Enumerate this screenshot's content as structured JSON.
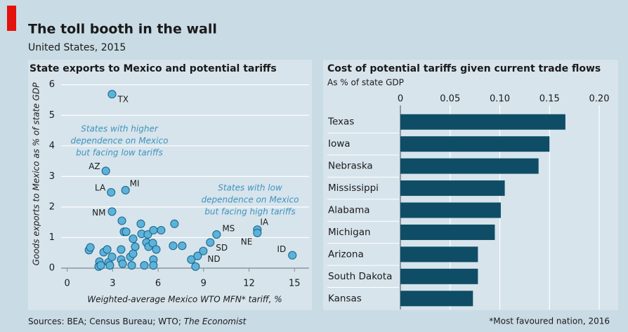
{
  "header": {
    "title": "The toll booth in the wall",
    "subtitle": "United States, 2015"
  },
  "footer": {
    "sources": [
      "Sources: BEA; Census Bureau; WTO; ",
      "The Economist"
    ],
    "note": "*Most favoured nation, 2016"
  },
  "chart_data": [
    {
      "type": "scatter",
      "title": "State exports to Mexico and potential tariffs",
      "x_label": "Weighted-average Mexico WTO MFN* tariff, %",
      "y_label": "Goods exports to Mexico as % of state GDP",
      "color": "#5db2da",
      "edge_color": "#1d6a8e",
      "grid": true,
      "xlim": [
        -0.4,
        15.5
      ],
      "ylim": [
        0,
        6.2
      ],
      "xticks": [
        0,
        3,
        6,
        9,
        12,
        15
      ],
      "yticks": [
        0,
        1,
        2,
        3,
        4,
        5,
        6
      ],
      "annotations": [
        {
          "lines": [
            "States with higher",
            "dependence on Mexico",
            "but facing low tariffs"
          ]
        },
        {
          "lines": [
            "States with low",
            "dependence on Mexico",
            "but facing high tariffs"
          ]
        }
      ],
      "labels": [
        "TX",
        "AZ",
        "LA",
        "MI",
        "NM",
        "MS",
        "SD",
        "ND",
        "IA",
        "NE",
        "ID",
        null,
        null,
        null,
        null,
        null,
        null,
        null,
        null,
        null,
        null,
        null,
        null,
        null,
        null,
        null,
        null,
        null,
        null,
        null,
        null,
        null,
        null,
        null,
        null,
        null,
        null,
        null,
        null,
        null,
        null,
        null,
        null,
        null,
        null,
        null,
        null,
        null,
        null,
        null
      ],
      "x": [
        2.96,
        2.55,
        2.9,
        3.85,
        2.96,
        9.86,
        9.44,
        8.98,
        12.55,
        12.55,
        14.86,
        1.44,
        1.53,
        2.13,
        2.08,
        2.22,
        2.41,
        2.64,
        2.73,
        2.82,
        2.96,
        3.56,
        3.56,
        3.66,
        3.61,
        3.75,
        3.89,
        4.17,
        4.26,
        4.35,
        4.49,
        4.35,
        4.86,
        4.91,
        5.23,
        5.32,
        5.37,
        5.09,
        5.69,
        5.65,
        5.69,
        5.69,
        5.88,
        6.2,
        7.08,
        6.99,
        7.59,
        8.19,
        8.47,
        8.61
      ],
      "values": [
        5.69,
        3.18,
        2.48,
        2.55,
        1.85,
        1.1,
        0.84,
        0.56,
        1.26,
        1.15,
        0.42,
        0.59,
        0.68,
        0.21,
        0.05,
        0.09,
        0.52,
        0.61,
        0.19,
        0.09,
        0.37,
        0.61,
        0.28,
        0.14,
        1.55,
        1.19,
        1.19,
        0.37,
        0.09,
        0.96,
        0.7,
        0.47,
        1.45,
        1.12,
        0.84,
        1.1,
        0.7,
        0.09,
        1.24,
        0.82,
        0.28,
        0.09,
        0.61,
        1.24,
        1.45,
        0.73,
        0.73,
        0.28,
        0.05,
        0.4
      ]
    },
    {
      "type": "barh",
      "title": "Cost of potential tariffs given current trade flows",
      "subtitle": "As % of state GDP",
      "color": "#0f4d66",
      "grid": true,
      "categories": [
        "Texas",
        "Iowa",
        "Nebraska",
        "Mississippi",
        "Alabama",
        "Michigan",
        "Arizona",
        "South Dakota",
        "Kansas"
      ],
      "values": [
        0.166,
        0.15,
        0.139,
        0.105,
        0.101,
        0.095,
        0.078,
        0.078,
        0.073
      ],
      "xlim": [
        0,
        0.2
      ],
      "xticks": [
        0,
        0.05,
        {
          "value": 0.1,
          "label": "0.10"
        },
        0.15,
        {
          "value": 0.2,
          "label": "0.20"
        }
      ]
    }
  ]
}
